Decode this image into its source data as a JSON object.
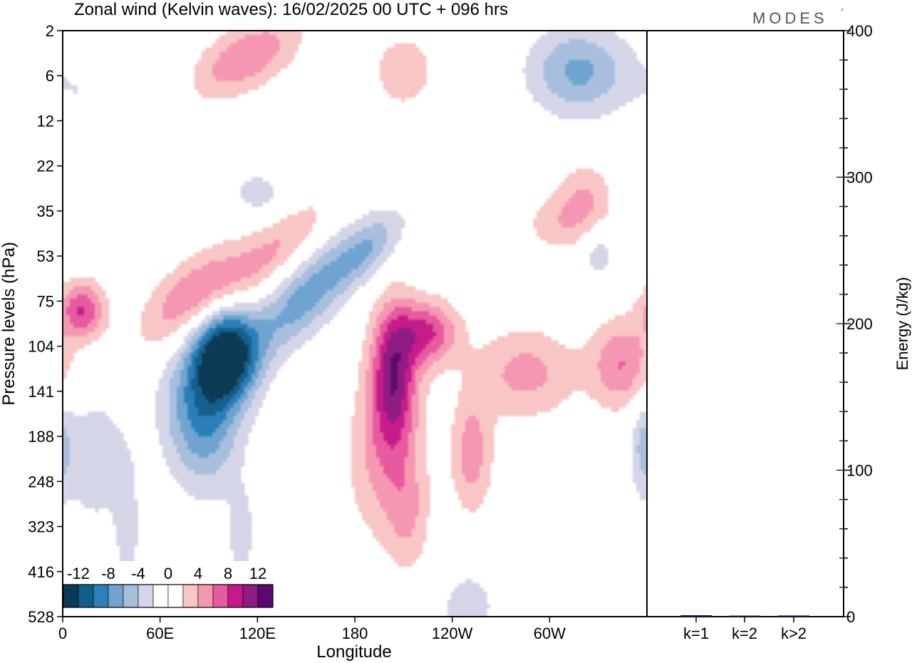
{
  "header": {
    "title": "Zonal wind (Kelvin waves):  16/02/2025  00 UTC  + 096 hrs",
    "brand": "MODES",
    "brand_mark": "°"
  },
  "chart_data": [
    {
      "type": "heatmap",
      "title": "Zonal wind (Kelvin waves):  16/02/2025  00 UTC  + 096 hrs",
      "xlabel": "Longitude",
      "ylabel": "Pressure levels (hPa)",
      "x_ticks": [
        "0",
        "60E",
        "120E",
        "180",
        "120W",
        "60W"
      ],
      "x_tick_values": [
        0,
        60,
        120,
        180,
        240,
        300
      ],
      "xlim": [
        0,
        360
      ],
      "y_ticks": [
        "2",
        "6",
        "12",
        "22",
        "35",
        "53",
        "75",
        "104",
        "141",
        "188",
        "248",
        "323",
        "416",
        "528"
      ],
      "y_scale": "model levels (log-like, top = 2 hPa)",
      "colorbar": {
        "labels": [
          "-12",
          "-8",
          "-4",
          "0",
          "4",
          "8",
          "12"
        ],
        "bins": [
          {
            "range": "< -12",
            "color": "#0b3a56"
          },
          {
            "range": "-12 to -10",
            "color": "#135f8c"
          },
          {
            "range": "-10 to -8",
            "color": "#2c7fb8"
          },
          {
            "range": "-8 to -6",
            "color": "#6ea4cf"
          },
          {
            "range": "-6 to -4",
            "color": "#a7bedd"
          },
          {
            "range": "-4 to -2",
            "color": "#d4d6e8"
          },
          {
            "range": "-2 to 0",
            "color": "#ffffff"
          },
          {
            "range": "0 to 2",
            "color": "#ffffff"
          },
          {
            "range": "2 to 4",
            "color": "#f9c6c6"
          },
          {
            "range": "4 to 6",
            "color": "#f597b2"
          },
          {
            "range": "6 to 8",
            "color": "#e75a9f"
          },
          {
            "range": "8 to 10",
            "color": "#c51b8a"
          },
          {
            "range": "10 to 12",
            "color": "#8e1a82"
          },
          {
            "range": "> 12",
            "color": "#5a0a6e"
          }
        ]
      },
      "features": [
        {
          "sign": "easterly",
          "min": -14,
          "lon": 100,
          "level": "104",
          "note": "strongest negative core"
        },
        {
          "sign": "westerly",
          "max": 10,
          "lon": 204,
          "level": "104-141",
          "note": "strongest positive core"
        },
        {
          "sign": "westerly",
          "max": 8,
          "lon": 225,
          "level": "75-104"
        },
        {
          "sign": "westerly",
          "max": 8,
          "lon": 10,
          "level": "75"
        },
        {
          "sign": "easterly",
          "min": -6,
          "lon": 318,
          "level": "6"
        }
      ]
    },
    {
      "type": "bar",
      "categories": [
        "k=1",
        "k=2",
        "k>2"
      ],
      "values": [
        1.0,
        0.3,
        0.8
      ],
      "ylabel": "Energy (J/kg)",
      "ylim": [
        0,
        400
      ],
      "y_ticks": [
        "0",
        "100",
        "200",
        "300",
        "400"
      ],
      "bar_color": "#1d1d4f"
    }
  ]
}
